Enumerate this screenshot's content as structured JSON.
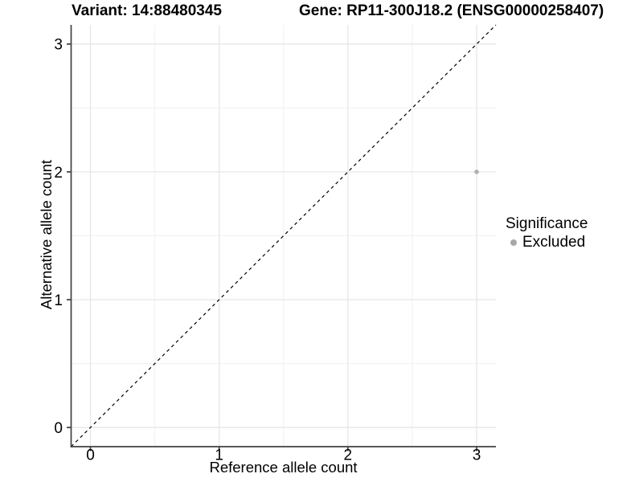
{
  "chart_data": {
    "type": "scatter",
    "title_left": "Variant: 14:88480345",
    "title_right": "Gene: RP11-300J18.2 (ENSG00000258407)",
    "xlabel": "Reference allele count",
    "ylabel": "Alternative allele count",
    "xlim": [
      -0.15,
      3.15
    ],
    "ylim": [
      -0.15,
      3.15
    ],
    "xticks": [
      0,
      1,
      2,
      3
    ],
    "yticks": [
      0,
      1,
      2,
      3
    ],
    "x_minor_ticks": [
      0.5,
      1.5,
      2.5
    ],
    "y_minor_ticks": [
      0.5,
      1.5,
      2.5
    ],
    "grid": "major and minor, light gray on white",
    "series": [
      {
        "name": "Excluded",
        "color": "#b0b0b0",
        "points": [
          {
            "x": 3,
            "y": 2
          }
        ]
      }
    ],
    "reference_line": {
      "type": "identity y=x",
      "style": "dashed",
      "color": "#000000"
    },
    "legend": {
      "title": "Significance",
      "position": "right",
      "items": [
        {
          "label": "Excluded",
          "color": "#a8a8a8"
        }
      ]
    },
    "colors": {
      "background": "#ffffff",
      "grid_major": "#e4e4e4",
      "grid_minor": "#f0f0f0",
      "axis_line": "#404040",
      "text": "#000000",
      "point": "#b0b0b0"
    }
  }
}
